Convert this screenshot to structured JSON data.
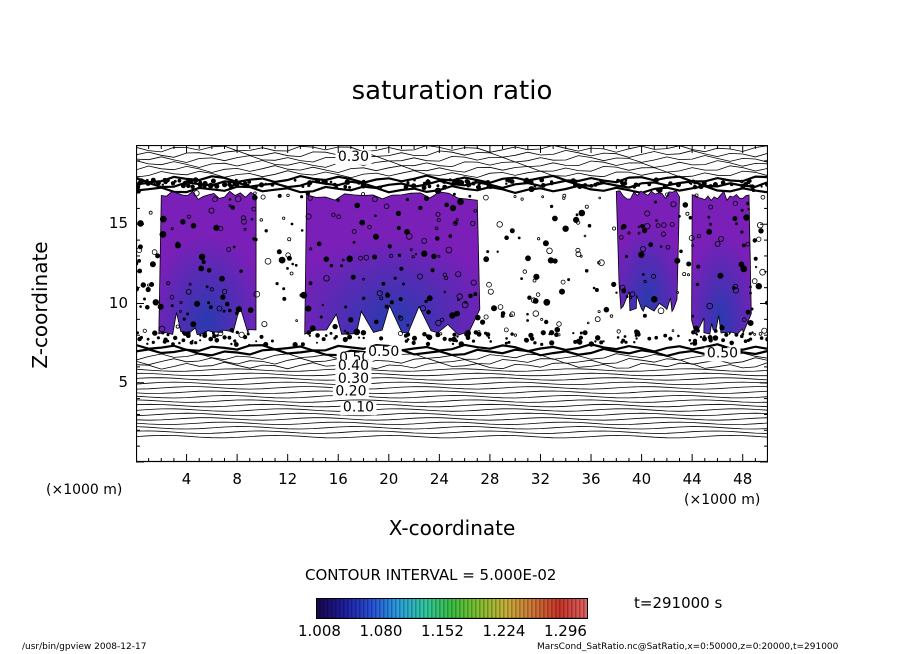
{
  "chart_data": {
    "type": "heatmap",
    "title": "saturation ratio",
    "xlabel": "X-coordinate",
    "ylabel": "Z-coordinate",
    "x_unit": "(×1000 m)",
    "y_unit": "(×1000 m)",
    "xlim": [
      0,
      50
    ],
    "ylim": [
      0,
      20
    ],
    "x_ticks": [
      4,
      8,
      12,
      16,
      20,
      24,
      28,
      32,
      36,
      40,
      44,
      48
    ],
    "y_ticks": [
      5,
      10,
      15
    ],
    "contour_labels": [
      {
        "text": "0.30",
        "x": 17.2,
        "y": 19.0
      },
      {
        "text": "0.50",
        "x": 17.3,
        "y": 6.3
      },
      {
        "text": "0.50",
        "x": 19.6,
        "y": 6.7
      },
      {
        "text": "0.40",
        "x": 17.2,
        "y": 5.8
      },
      {
        "text": "0.30",
        "x": 17.2,
        "y": 5.0
      },
      {
        "text": "0.20",
        "x": 17.0,
        "y": 4.2
      },
      {
        "text": "0.10",
        "x": 17.6,
        "y": 3.2
      },
      {
        "text": "0.50",
        "x": 46.4,
        "y": 6.6
      }
    ],
    "contour_interval": "CONTOUR INTERVAL = 5.000E-02",
    "time": "t=291000 s",
    "colorbar": {
      "tick_labels": [
        "1.008",
        "1.080",
        "1.152",
        "1.224",
        "1.296"
      ],
      "range": [
        1.008,
        1.296
      ],
      "colors": [
        "#180850",
        "#1f1ea0",
        "#2850d8",
        "#2aa0e0",
        "#30c8a0",
        "#3cc040",
        "#80c030",
        "#c8b038",
        "#d07838",
        "#c83428",
        "#e06060"
      ]
    },
    "supersaturated_regions": [
      {
        "x": [
          2,
          9.5
        ],
        "z": [
          8.0,
          17.0
        ]
      },
      {
        "x": [
          13.5,
          27
        ],
        "z": [
          8.0,
          17.0
        ]
      },
      {
        "x": [
          38,
          43
        ],
        "z": [
          9.5,
          17.0
        ]
      },
      {
        "x": [
          44,
          48.5
        ],
        "z": [
          8.0,
          17.0
        ]
      }
    ],
    "fill_color": "#7a1fb8",
    "core_color": "#2a3ab0"
  },
  "footer": {
    "left": "/usr/bin/gpview  2008-12-17",
    "right": "MarsCond_SatRatio.nc@SatRatio,x=0:50000,z=0:20000,t=291000"
  }
}
